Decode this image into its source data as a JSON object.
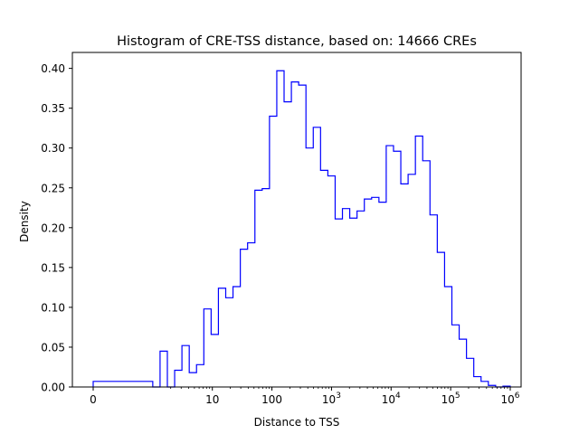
{
  "chart_data": {
    "type": "histogram",
    "title": "Histogram of CRE-TSS distance, based on: 14666 CREs",
    "xlabel": "Distance to TSS",
    "ylabel": "Density",
    "x_scale": "symlog",
    "ylim": [
      0.0,
      0.42
    ],
    "x_ticks": [
      {
        "value": 0,
        "base": "0",
        "exp": ""
      },
      {
        "value": 10,
        "base": "10",
        "exp": ""
      },
      {
        "value": 100,
        "base": "100",
        "exp": ""
      },
      {
        "value": 1000,
        "base": "10",
        "exp": "3"
      },
      {
        "value": 10000,
        "base": "10",
        "exp": "4"
      },
      {
        "value": 100000,
        "base": "10",
        "exp": "5"
      },
      {
        "value": 1000000,
        "base": "10",
        "exp": "6"
      }
    ],
    "y_ticks": [
      "0.00",
      "0.05",
      "0.10",
      "0.15",
      "0.20",
      "0.25",
      "0.30",
      "0.35",
      "0.40"
    ],
    "density": [
      0.007,
      0.0,
      0.045,
      0.0,
      0.021,
      0.052,
      0.018,
      0.028,
      0.098,
      0.066,
      0.124,
      0.112,
      0.126,
      0.173,
      0.181,
      0.247,
      0.249,
      0.34,
      0.397,
      0.358,
      0.383,
      0.379,
      0.3,
      0.326,
      0.272,
      0.265,
      0.211,
      0.224,
      0.212,
      0.221,
      0.236,
      0.238,
      0.232,
      0.303,
      0.296,
      0.255,
      0.267,
      0.315,
      0.284,
      0.216,
      0.169,
      0.126,
      0.078,
      0.06,
      0.036,
      0.013,
      0.007,
      0.002,
      0.0,
      0.001
    ],
    "series_color": "#0000ff"
  }
}
